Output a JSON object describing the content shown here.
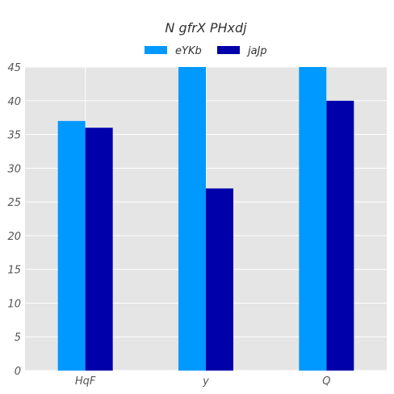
{
  "chart_data": {
    "type": "bar",
    "title": "N gfrX PHxdj",
    "xlabel": "",
    "ylabel": "",
    "categories": [
      "HqF",
      "y",
      "Q"
    ],
    "series": [
      {
        "name": "eYKb",
        "color": "#0099ff",
        "values": [
          37,
          45,
          45
        ]
      },
      {
        "name": "jaJp",
        "color": "#0000aa",
        "values": [
          36,
          27,
          40
        ]
      }
    ],
    "ylim": [
      0,
      45
    ],
    "yticks": [
      0,
      5,
      10,
      15,
      20,
      25,
      30,
      35,
      40,
      45
    ],
    "grid": true,
    "legend_position": "top-center",
    "plot_background": "#e5e5e5"
  }
}
